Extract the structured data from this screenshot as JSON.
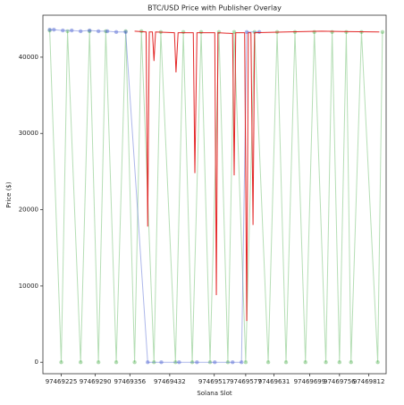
{
  "chart_data": {
    "type": "line",
    "title": "BTC/USD Price with Publisher Overlay",
    "x_label": "Solana Slot",
    "y_label": "Price ($)",
    "xlim": [
      97469190,
      97469845
    ],
    "ylim": [
      -1500,
      45500
    ],
    "xticks": [
      97469225,
      97469290,
      97469356,
      97469432,
      97469517,
      97469577,
      97469631,
      97469699,
      97469756,
      97469812
    ],
    "yticks": [
      0,
      10000,
      20000,
      30000,
      40000
    ],
    "series": [
      {
        "color": "#2ca02c",
        "alpha": 0.35,
        "markers": true,
        "x": [
          97469203,
          97469225,
          97469237,
          97469262,
          97469279,
          97469296,
          97469310,
          97469330,
          97469348,
          97469365,
          97469378,
          97469402,
          97469415,
          97469443,
          97469458,
          97469475,
          97469492,
          97469509,
          97469526,
          97469543,
          97469555,
          97469577,
          97469594,
          97469620,
          97469637,
          97469654,
          97469671,
          97469691,
          97469708,
          97469730,
          97469742,
          97469756,
          97469769,
          97469778,
          97469798,
          97469829,
          97469838
        ],
        "values": [
          43500,
          0,
          43400,
          0,
          43400,
          0,
          43400,
          0,
          43400,
          0,
          43400,
          0,
          43300,
          0,
          43300,
          0,
          43300,
          0,
          43300,
          0,
          43300,
          0,
          43300,
          0,
          43300,
          0,
          43300,
          0,
          43300,
          0,
          43300,
          0,
          43300,
          0,
          43300,
          0,
          43300
        ]
      },
      {
        "color": "#4a5fd0",
        "alpha": 0.45,
        "markers": true,
        "x": [
          97469203,
          97469211,
          97469228,
          97469245,
          97469262,
          97469279,
          97469296,
          97469313,
          97469330,
          97469348,
          97469390,
          97469416,
          97469450,
          97469484,
          97469518,
          97469552,
          97469569,
          97469579,
          97469603
        ],
        "values": [
          43600,
          43600,
          43500,
          43500,
          43400,
          43500,
          43400,
          43400,
          43300,
          43300,
          0,
          0,
          0,
          0,
          0,
          0,
          0,
          43300,
          43300
        ]
      },
      {
        "color": "#e01010",
        "alpha": 0.9,
        "markers": false,
        "x": [
          97469365,
          97469387,
          97469390,
          97469393,
          97469399,
          97469402,
          97469405,
          97469441,
          97469444,
          97469448,
          97469477,
          97469480,
          97469484,
          97469518,
          97469521,
          97469524,
          97469552,
          97469555,
          97469558,
          97469575,
          97469579,
          97469582,
          97469587,
          97469591,
          97469594,
          97469654,
          97469722,
          97469832
        ],
        "values": [
          43400,
          43300,
          17800,
          43300,
          43300,
          39500,
          43300,
          43200,
          38000,
          43200,
          43200,
          24800,
          43200,
          43200,
          8800,
          43200,
          43100,
          24500,
          43200,
          43200,
          5400,
          43200,
          43200,
          18000,
          43200,
          43300,
          43400,
          43300
        ]
      }
    ]
  }
}
